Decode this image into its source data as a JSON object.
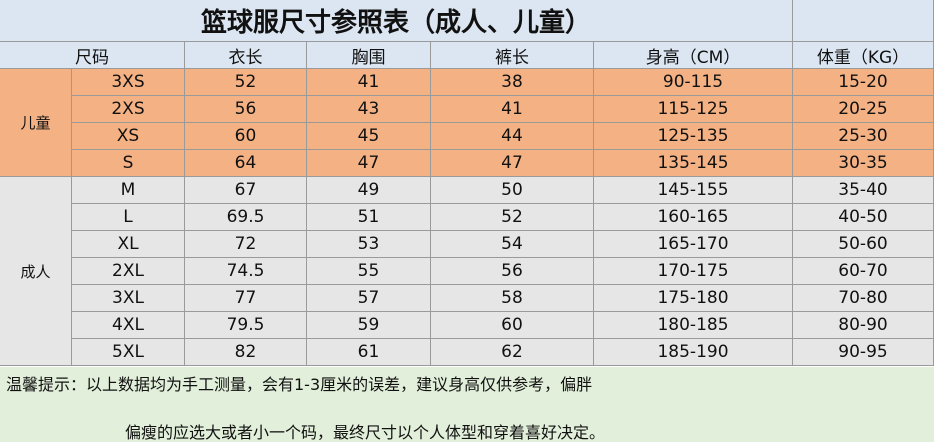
{
  "title": "篮球服尺寸参照表（成人、儿童）",
  "table": {
    "headers": [
      "尺码",
      "衣长",
      "胸围",
      "裤长",
      "身高（CM）",
      "体重（KG）"
    ],
    "groups": [
      {
        "label": "儿童",
        "rows": [
          [
            "3XS",
            52,
            41,
            38,
            "90-115",
            "15-20"
          ],
          [
            "2XS",
            56,
            43,
            41,
            "115-125",
            "20-25"
          ],
          [
            "XS",
            60,
            45,
            44,
            "125-135",
            "25-30"
          ],
          [
            "S",
            64,
            47,
            47,
            "135-145",
            "30-35"
          ]
        ]
      },
      {
        "label": "成人",
        "rows": [
          [
            "M",
            67,
            49,
            50,
            "145-155",
            "35-40"
          ],
          [
            "L",
            69.5,
            51,
            52,
            "160-165",
            "40-50"
          ],
          [
            "XL",
            72,
            53,
            54,
            "165-170",
            "50-60"
          ],
          [
            "2XL",
            74.5,
            55,
            56,
            "170-175",
            "60-70"
          ],
          [
            "3XL",
            77,
            57,
            58,
            "175-180",
            "70-80"
          ],
          [
            "4XL",
            79.5,
            59,
            60,
            "180-185",
            "80-90"
          ],
          [
            "5XL",
            82,
            61,
            62,
            "185-190",
            "90-95"
          ]
        ]
      }
    ]
  },
  "note": [
    "温馨提示：以上数据均为手工测量，会有1-3厘米的误差，建议身高仅供参考，偏胖",
    "偏瘦的应选大或者小一个码，最终尺寸以个人体型和穿着喜好决定。"
  ]
}
